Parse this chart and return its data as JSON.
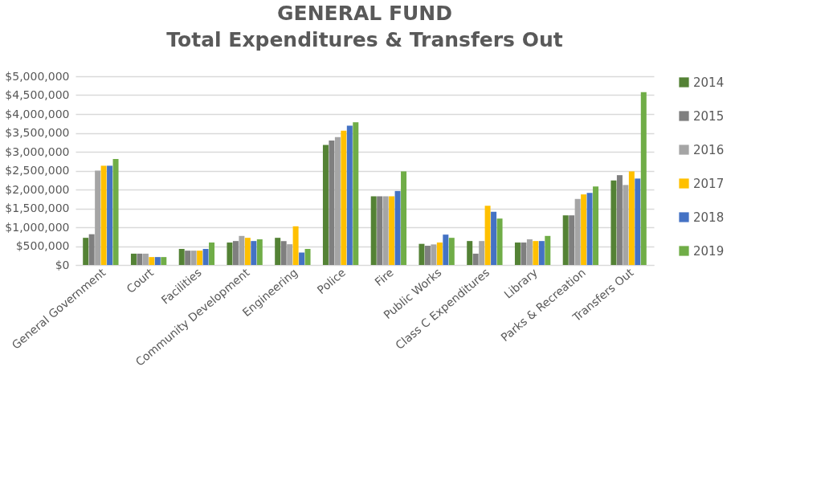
{
  "chart_data": {
    "type": "bar",
    "title": "GENERAL FUND",
    "subtitle": "Total Expenditures & Transfers Out",
    "categories": [
      "General Government",
      "Court",
      "Facilities",
      "Community Development",
      "Engineering",
      "Police",
      "Fire",
      "Public Works",
      "Class C Expenditures",
      "Library",
      "Parks & Recreation",
      "Transfers Out"
    ],
    "series": [
      {
        "name": "2014",
        "color": "#548235",
        "values": [
          720000,
          300000,
          425000,
          595000,
          720000,
          3180000,
          1820000,
          560000,
          635000,
          595000,
          1315000,
          2240000
        ]
      },
      {
        "name": "2015",
        "color": "#7f7f7f",
        "values": [
          815000,
          300000,
          380000,
          635000,
          635000,
          3300000,
          1820000,
          510000,
          300000,
          595000,
          1315000,
          2380000
        ]
      },
      {
        "name": "2016",
        "color": "#a5a5a5",
        "values": [
          2500000,
          300000,
          380000,
          770000,
          550000,
          3390000,
          1820000,
          545000,
          635000,
          680000,
          1750000,
          2120000
        ]
      },
      {
        "name": "2017",
        "color": "#ffc000",
        "values": [
          2630000,
          210000,
          380000,
          720000,
          1025000,
          3560000,
          1820000,
          595000,
          1570000,
          635000,
          1870000,
          2480000
        ]
      },
      {
        "name": "2018",
        "color": "#4472c4",
        "values": [
          2630000,
          210000,
          425000,
          635000,
          330000,
          3690000,
          1960000,
          805000,
          1410000,
          635000,
          1910000,
          2290000
        ]
      },
      {
        "name": "2019",
        "color": "#70ad47",
        "values": [
          2810000,
          210000,
          595000,
          680000,
          425000,
          3780000,
          2480000,
          720000,
          1230000,
          770000,
          2080000,
          4580000
        ]
      }
    ],
    "ylim": [
      0,
      5000000
    ],
    "yticks": [
      {
        "value": 0,
        "label": "$0"
      },
      {
        "value": 500000,
        "label": "$500,000"
      },
      {
        "value": 1000000,
        "label": "$1,000,000"
      },
      {
        "value": 1500000,
        "label": "$1,500,000"
      },
      {
        "value": 2000000,
        "label": "$2,000,000"
      },
      {
        "value": 2500000,
        "label": "$2,500,000"
      },
      {
        "value": 3000000,
        "label": "$3,000,000"
      },
      {
        "value": 3500000,
        "label": "$3,500,000"
      },
      {
        "value": 4000000,
        "label": "$4,000,000"
      },
      {
        "value": 4500000,
        "label": "$4,500,000"
      },
      {
        "value": 5000000,
        "label": "$5,000,000"
      }
    ],
    "grid": "y",
    "legend": "right"
  }
}
